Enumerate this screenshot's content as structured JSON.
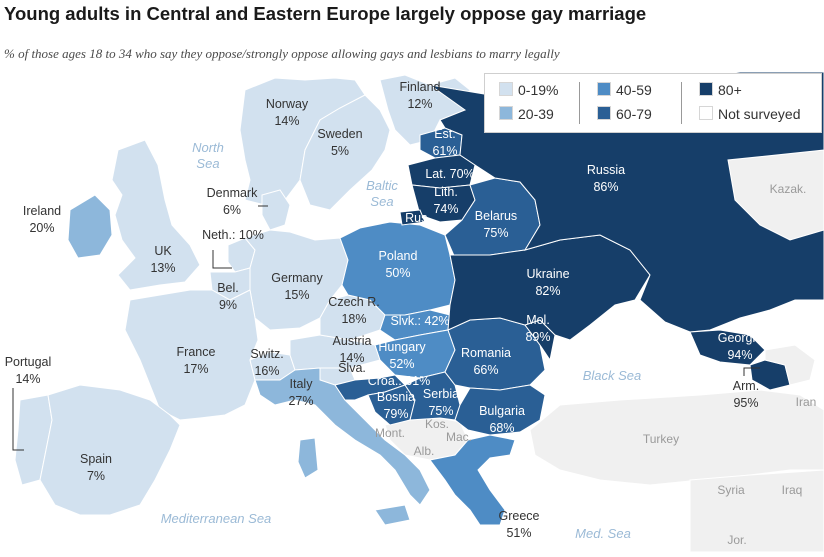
{
  "header": {
    "title": "Young adults in Central and Eastern Europe largely oppose gay marriage",
    "subtitle": "% of those ages 18 to 34 who say they oppose/strongly oppose allowing gays and lesbians to marry legally"
  },
  "colors": {
    "c0": "#d2e1ef",
    "c20": "#8db7db",
    "c40": "#4e8cc5",
    "c60": "#2a5f95",
    "c80": "#163e69",
    "not_surveyed": "#ffffff",
    "water": "#ffffff",
    "border": "#ffffff",
    "other_land": "#f0f0f0",
    "water_label": "#9bbad6"
  },
  "legend": [
    {
      "label": "0-19%",
      "color_key": "c0"
    },
    {
      "label": "20-39",
      "color_key": "c20"
    },
    {
      "label": "40-59",
      "color_key": "c40"
    },
    {
      "label": "60-79",
      "color_key": "c60"
    },
    {
      "label": "80+",
      "color_key": "c80"
    },
    {
      "label": "Not surveyed",
      "color_key": "not_surveyed"
    }
  ],
  "countries": [
    {
      "name": "Finland",
      "value": "12%"
    },
    {
      "name": "Norway",
      "value": "14%"
    },
    {
      "name": "Sweden",
      "value": "5%"
    },
    {
      "name": "Est.",
      "value": "61%"
    },
    {
      "name": "Lat.",
      "value": "70%"
    },
    {
      "name": "Lith.",
      "value": "74%"
    },
    {
      "name": "Rus.",
      "value": ""
    },
    {
      "name": "Russia",
      "value": "86%"
    },
    {
      "name": "Denmark",
      "value": "6%"
    },
    {
      "name": "Ireland",
      "value": "20%"
    },
    {
      "name": "UK",
      "value": "13%"
    },
    {
      "name": "Neth.:",
      "value": "10%"
    },
    {
      "name": "Bel.",
      "value": "9%"
    },
    {
      "name": "Germany",
      "value": "15%"
    },
    {
      "name": "Poland",
      "value": "50%"
    },
    {
      "name": "Belarus",
      "value": "75%"
    },
    {
      "name": "Ukraine",
      "value": "82%"
    },
    {
      "name": "Czech R.",
      "value": "18%"
    },
    {
      "name": "Slvk.:",
      "value": "42%"
    },
    {
      "name": "Austria",
      "value": "14%"
    },
    {
      "name": "Hungary",
      "value": "52%"
    },
    {
      "name": "Mol.",
      "value": "89%"
    },
    {
      "name": "Romania",
      "value": "66%"
    },
    {
      "name": "France",
      "value": "17%"
    },
    {
      "name": "Switz.",
      "value": "16%"
    },
    {
      "name": "Slva.",
      "value": ""
    },
    {
      "name": "Croa.:",
      "value": "61%"
    },
    {
      "name": "Italy",
      "value": "27%"
    },
    {
      "name": "Bosnia",
      "value": "79%"
    },
    {
      "name": "Serbia",
      "value": "75%"
    },
    {
      "name": "Bulgaria",
      "value": "68%"
    },
    {
      "name": "Georgia",
      "value": "94%"
    },
    {
      "name": "Arm.",
      "value": "95%"
    },
    {
      "name": "Portugal",
      "value": "14%"
    },
    {
      "name": "Spain",
      "value": "7%"
    },
    {
      "name": "Greece",
      "value": "51%"
    }
  ],
  "other_labels": [
    "Kazak.",
    "Mont.",
    "Kos.",
    "Mac.",
    "Alb.",
    "Turkey",
    "Syria",
    "Iraq",
    "Iran",
    "Jor."
  ],
  "water_labels": [
    "North Sea",
    "Baltic Sea",
    "Black Sea",
    "Mediterranean Sea",
    "Med. Sea"
  ]
}
